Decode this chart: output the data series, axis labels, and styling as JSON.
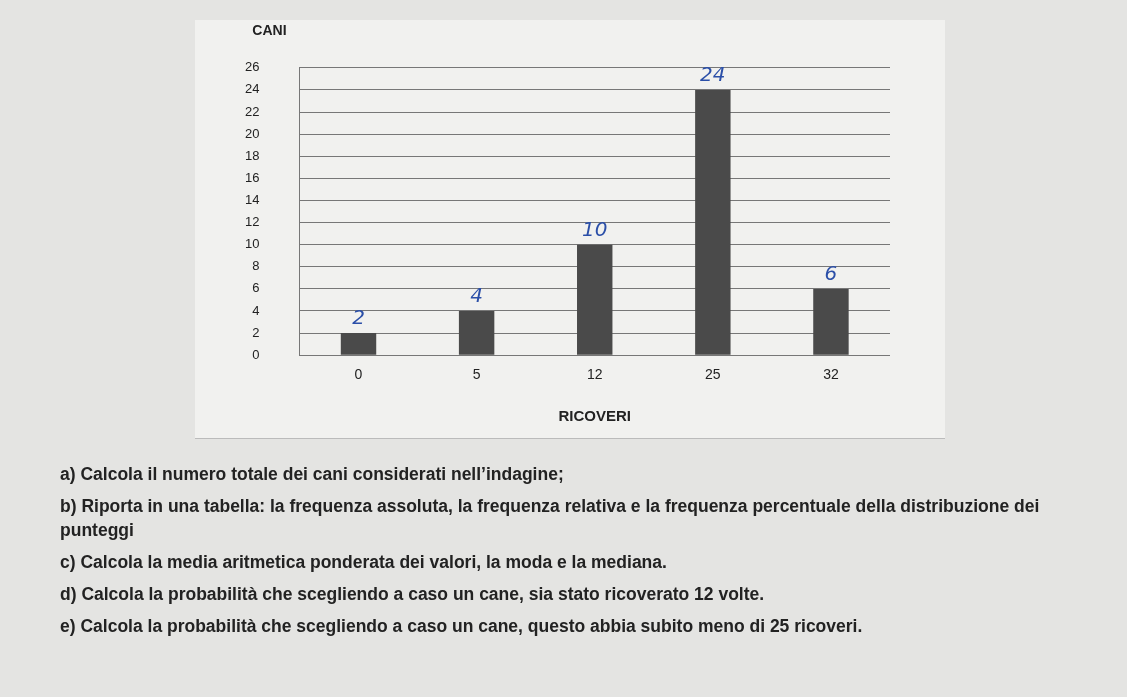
{
  "chart_data": {
    "type": "bar",
    "ylabel": "CANI",
    "xlabel": "RICOVERI",
    "categories": [
      "0",
      "5",
      "12",
      "25",
      "32"
    ],
    "values": [
      2,
      4,
      10,
      24,
      6
    ],
    "color": "#4a4a4a",
    "ylim": [
      0,
      26
    ],
    "yticks": [
      0,
      2,
      4,
      6,
      8,
      10,
      12,
      14,
      16,
      18,
      20,
      22,
      24,
      26
    ],
    "grid": "y",
    "legend": false,
    "data_labels": true,
    "annotations": [
      "a) Calcola il numero totale dei cani considerati nell’indagine;",
      "b) Riporta in una tabella: la frequenza assoluta, la frequenza relativa e la frequenza percentuale della distribuzione dei punteggi",
      "c) Calcola la media aritmetica ponderata dei valori, la moda e la mediana.",
      "d) Calcola la probabilità che scegliendo a caso un cane, sia stato ricoverato 12 volte.",
      "e) Calcola la probabilità che scegliendo a caso un cane, questo abbia subito meno di 25 ricoveri."
    ]
  }
}
